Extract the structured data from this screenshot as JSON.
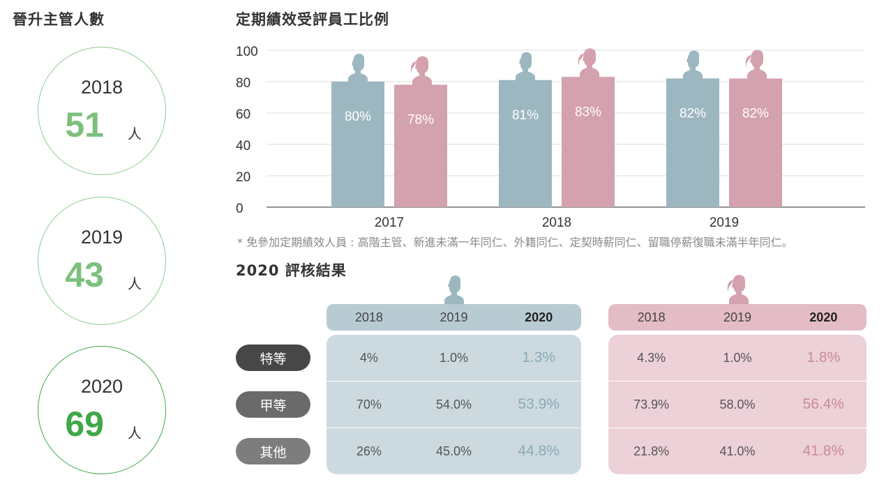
{
  "promotion": {
    "title": "晉升主管人數",
    "unit": "人",
    "items": [
      {
        "year": "2018",
        "count": "51"
      },
      {
        "year": "2019",
        "count": "43"
      },
      {
        "year": "2020",
        "count": "69"
      }
    ]
  },
  "chart_title": "定期績效受評員工比例",
  "chart_data": {
    "type": "bar",
    "title": "定期績效受評員工比例",
    "categories": [
      "2017",
      "2018",
      "2019"
    ],
    "series": [
      {
        "values": [
          80,
          81,
          82
        ],
        "labels": [
          "80%",
          "81%",
          "82%"
        ],
        "color": "#9db7c1",
        "icon": "male-silhouette"
      },
      {
        "values": [
          78,
          83,
          82
        ],
        "labels": [
          "78%",
          "83%",
          "82%"
        ],
        "color": "#d4a1ae",
        "icon": "female-silhouette"
      }
    ],
    "ylim": [
      0,
      100
    ],
    "yticks": [
      "0",
      "20",
      "40",
      "60",
      "80",
      "100"
    ],
    "grid": true,
    "xlabel": "",
    "ylabel": ""
  },
  "footnote": "* 免參加定期績效人員 : 高階主管、新進未滿一年同仁、外籍同仁、定契時薪同仁、留職停薪復職未滿半年同仁。",
  "review": {
    "title": "2020 評核結果",
    "grades": [
      "特等",
      "甲等",
      "其他"
    ],
    "grade_colors": [
      "#474747",
      "#6a6a6a",
      "#7d7d7d"
    ],
    "male": {
      "icon": "male-silhouette",
      "headers": [
        "2018",
        "2019",
        "2020"
      ],
      "rows": [
        [
          "4%",
          "1.0%",
          "1.3%"
        ],
        [
          "70%",
          "54.0%",
          "53.9%"
        ],
        [
          "26%",
          "45.0%",
          "44.8%"
        ]
      ],
      "head_color": "#b8cbd2",
      "body_color": "#ccdae0",
      "highlight_color": "#8aa9b5"
    },
    "female": {
      "icon": "female-silhouette",
      "headers": [
        "2018",
        "2019",
        "2020"
      ],
      "rows": [
        [
          "4.3%",
          "1.0%",
          "1.8%"
        ],
        [
          "73.9%",
          "58.0%",
          "56.4%"
        ],
        [
          "21.8%",
          "41.0%",
          "41.8%"
        ]
      ],
      "head_color": "#e4bcc6",
      "body_color": "#edd1d8",
      "highlight_color": "#c98a9b"
    }
  }
}
